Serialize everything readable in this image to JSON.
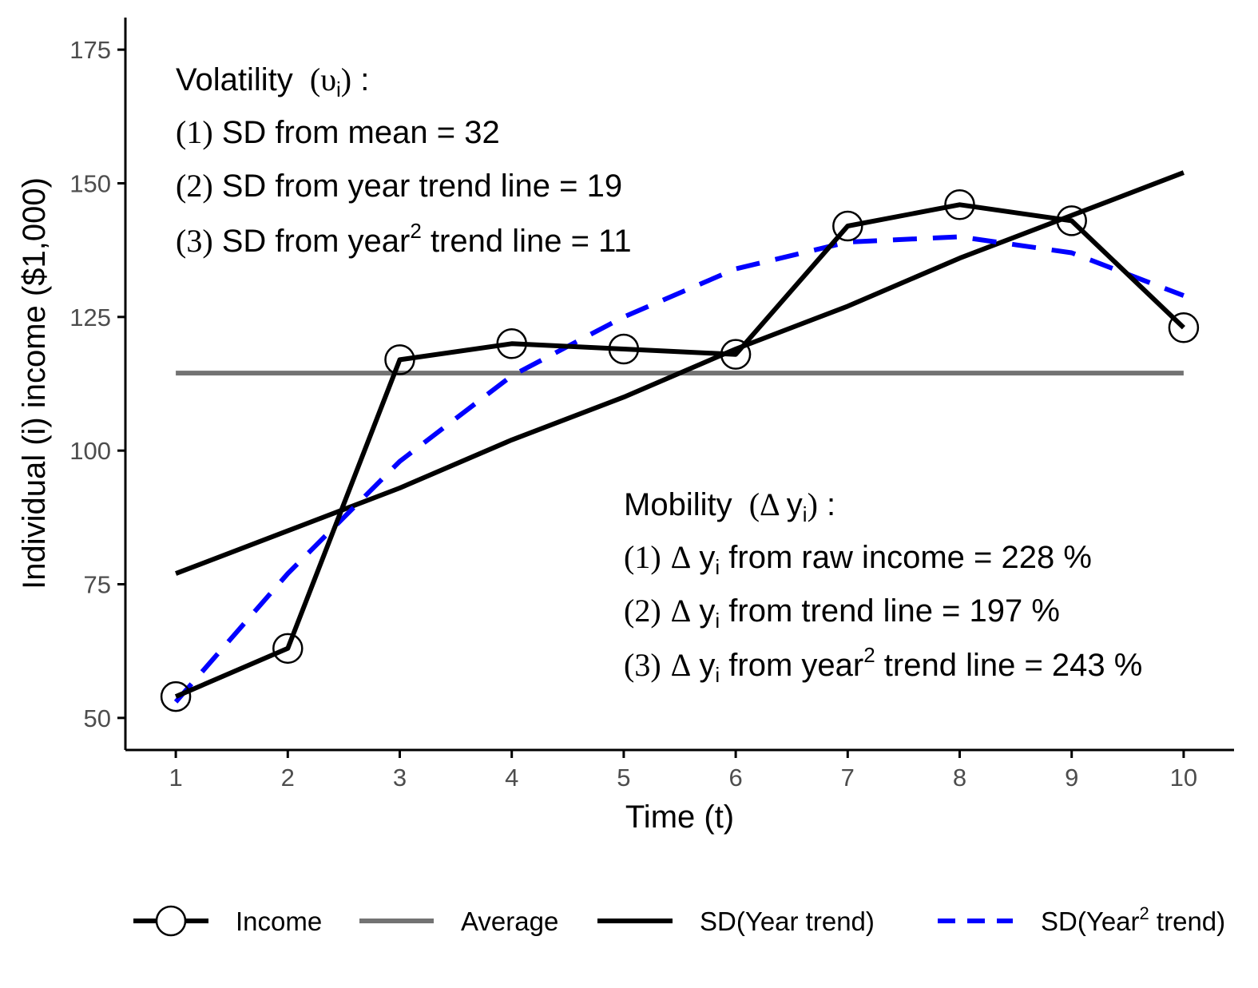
{
  "chart_data": {
    "type": "line",
    "xlabel": "Time (t)",
    "ylabel": "Individual (i) income ($1,000)",
    "xlim": [
      0.55,
      10.45
    ],
    "ylim": [
      44,
      181
    ],
    "x_ticks": [
      "1",
      "2",
      "3",
      "4",
      "5",
      "6",
      "7",
      "8",
      "9",
      "10"
    ],
    "y_ticks": [
      "50",
      "75",
      "100",
      "125",
      "150",
      "175"
    ],
    "x": [
      1,
      2,
      3,
      4,
      5,
      6,
      7,
      8,
      9,
      10
    ],
    "series": [
      {
        "name": "Income",
        "values": [
          54,
          63,
          117,
          120,
          119,
          118,
          142,
          146,
          143,
          123
        ],
        "color": "#000000",
        "style": "solid-with-open-circles"
      },
      {
        "name": "Average",
        "values": [
          114.5,
          114.5,
          114.5,
          114.5,
          114.5,
          114.5,
          114.5,
          114.5,
          114.5,
          114.5
        ],
        "color": "#737373",
        "style": "solid"
      },
      {
        "name": "SD(Year trend)",
        "values": [
          77,
          85,
          93,
          102,
          110,
          119,
          127,
          136,
          144,
          152
        ],
        "color": "#000000",
        "style": "solid"
      },
      {
        "name": "SD(Year² trend)",
        "values": [
          53,
          77,
          98,
          114,
          125,
          134,
          139,
          140,
          137,
          129
        ],
        "color": "#0000ff",
        "style": "dashed"
      }
    ],
    "legend": {
      "position": "bottom",
      "items": [
        {
          "key": "income",
          "prefix": "Income",
          "sup": "",
          "suffix": ""
        },
        {
          "key": "average",
          "prefix": "Average",
          "sup": "",
          "suffix": ""
        },
        {
          "key": "year",
          "prefix": "SD(Year trend)",
          "sup": "",
          "suffix": ""
        },
        {
          "key": "year2",
          "prefix": "SD(Year",
          "sup": "2",
          "suffix": " trend)"
        }
      ]
    },
    "annotations": {
      "volatility": {
        "heading": {
          "text": "Volatility",
          "symbol": "υ",
          "sub": "i",
          "colon": " :"
        },
        "lines": [
          {
            "num": "(1)",
            "before": " SD from mean = 32",
            "sup": "",
            "after": ""
          },
          {
            "num": "(2)",
            "before": " SD from year trend line = 19",
            "sup": "",
            "after": ""
          },
          {
            "num": "(3)",
            "before": " SD from year",
            "sup": "2",
            "after": " trend line = 11"
          }
        ]
      },
      "mobility": {
        "heading": {
          "text": "Mobility",
          "symbol": "Δ",
          "var": "y",
          "sub": "i",
          "colon": " :"
        },
        "lines": [
          {
            "num": "(1)",
            "delta": "Δ",
            "var": "y",
            "sub": "i",
            "before": " from raw income = 228 %",
            "sup": "",
            "after": ""
          },
          {
            "num": "(2)",
            "delta": "Δ",
            "var": "y",
            "sub": "i",
            "before": " from trend line = 197 %",
            "sup": "",
            "after": ""
          },
          {
            "num": "(3)",
            "delta": "Δ",
            "var": "y",
            "sub": "i",
            "before": " from year",
            "sup": "2",
            "after": " trend line = 243 %"
          }
        ]
      }
    }
  }
}
